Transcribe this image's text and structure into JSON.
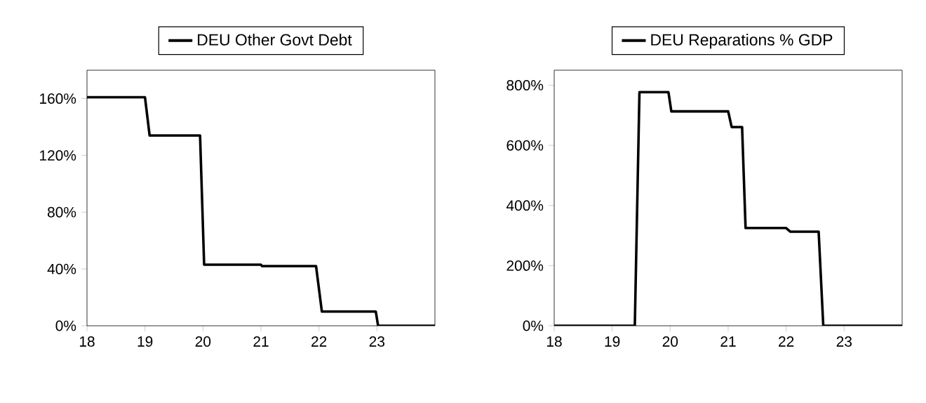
{
  "chart_data": [
    {
      "type": "line",
      "x": [
        18,
        19,
        19.08,
        19.95,
        20.02,
        21,
        21.02,
        21.95,
        22.05,
        22.98,
        23.02,
        24
      ],
      "series": [
        {
          "name": "DEU Other Govt Debt",
          "color": "#000000",
          "values": [
            161,
            161,
            134,
            134,
            43,
            43,
            42,
            42,
            10,
            10,
            0,
            0
          ]
        }
      ],
      "xlim": [
        18,
        24
      ],
      "xticks": [
        18,
        19,
        20,
        21,
        22,
        23
      ],
      "ylim": [
        0,
        180
      ],
      "yticks": [
        {
          "value": 0,
          "label": "0%"
        },
        {
          "value": 40,
          "label": "40%"
        },
        {
          "value": 80,
          "label": "80%"
        },
        {
          "value": 120,
          "label": "120%"
        },
        {
          "value": 160,
          "label": "160%"
        }
      ],
      "legend": "top",
      "line_style": "solid",
      "marker": "none",
      "grid": false
    },
    {
      "type": "line",
      "x": [
        18,
        19.39,
        19.47,
        19.97,
        20.02,
        21.0,
        21.06,
        21.24,
        21.3,
        22.0,
        22.07,
        22.56,
        22.64,
        24
      ],
      "series": [
        {
          "name": "DEU Reparations % GDP",
          "color": "#000000",
          "values": [
            0,
            0,
            777,
            777,
            713,
            713,
            661,
            661,
            325,
            325,
            313,
            313,
            0,
            0
          ]
        }
      ],
      "xlim": [
        18,
        24
      ],
      "xticks": [
        18,
        19,
        20,
        21,
        22,
        23
      ],
      "ylim": [
        0,
        850
      ],
      "yticks": [
        {
          "value": 0,
          "label": "0%"
        },
        {
          "value": 200,
          "label": "200%"
        },
        {
          "value": 400,
          "label": "400%"
        },
        {
          "value": 600,
          "label": "600%"
        },
        {
          "value": 800,
          "label": "800%"
        }
      ],
      "legend": "top",
      "line_style": "solid",
      "marker": "none",
      "grid": false
    }
  ]
}
